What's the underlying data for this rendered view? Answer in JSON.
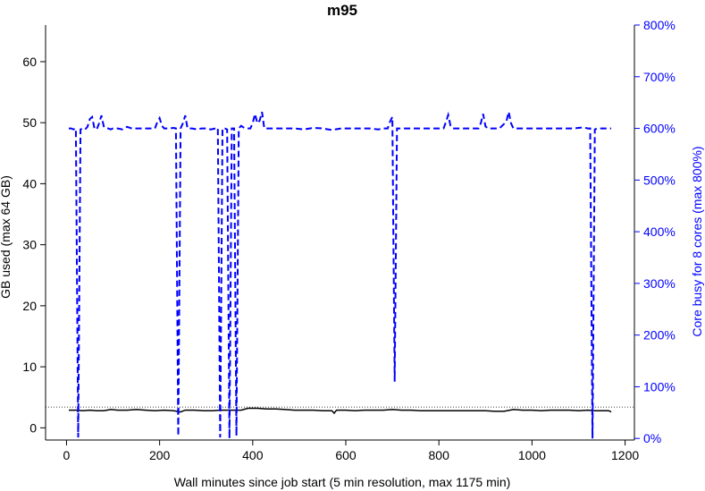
{
  "chart_data": {
    "type": "line",
    "title": "m95",
    "xlabel": "Wall minutes since job start (5 min resolution, max 1175 min)",
    "ylabel_left": "GB used (max 64 GB)",
    "ylabel_right": "Core busy for 8 cores (max 800%)",
    "xlim": [
      -45,
      1220
    ],
    "ylim_left": [
      -2,
      66
    ],
    "ylim_right": [
      -3.1,
      800
    ],
    "x_ticks": [
      0,
      200,
      400,
      600,
      800,
      1000,
      1200
    ],
    "x_tick_labels": [
      "0",
      "200",
      "400",
      "600",
      "800",
      "1000",
      "1200"
    ],
    "y_left_ticks": [
      0,
      10,
      20,
      30,
      40,
      50,
      60
    ],
    "y_left_tick_labels": [
      "0",
      "10",
      "20",
      "30",
      "40",
      "50",
      "60"
    ],
    "y_right_ticks": [
      0,
      100,
      200,
      300,
      400,
      500,
      600,
      700,
      800
    ],
    "y_right_tick_labels": [
      "0%",
      "100%",
      "200%",
      "300%",
      "400%",
      "500%",
      "600%",
      "700%",
      "800%"
    ],
    "reference_line_gb": 3.4,
    "grid": false,
    "colors": {
      "memory": "#000000",
      "cpu": "#0000ff",
      "right_axis": "#0000ff"
    },
    "series": [
      {
        "axis": "left",
        "style": "solid",
        "x": [
          5,
          20,
          35,
          50,
          65,
          80,
          95,
          110,
          130,
          150,
          170,
          190,
          210,
          230,
          245,
          255,
          275,
          295,
          315,
          330,
          345,
          360,
          375,
          390,
          410,
          430,
          450,
          470,
          490,
          510,
          530,
          550,
          570,
          575,
          580,
          600,
          620,
          640,
          660,
          680,
          700,
          720,
          740,
          760,
          780,
          800,
          820,
          840,
          860,
          880,
          900,
          920,
          940,
          960,
          980,
          1000,
          1020,
          1040,
          1060,
          1080,
          1100,
          1120,
          1135,
          1150,
          1165,
          1170
        ],
        "values": [
          2.9,
          2.9,
          2.8,
          2.9,
          2.8,
          2.8,
          3.0,
          2.9,
          2.9,
          3.0,
          2.9,
          2.8,
          2.9,
          2.8,
          2.6,
          2.9,
          2.9,
          2.8,
          2.8,
          2.9,
          2.9,
          2.9,
          2.9,
          3.2,
          3.2,
          3.1,
          3.1,
          3.0,
          2.9,
          2.9,
          2.9,
          2.8,
          2.8,
          2.4,
          2.9,
          2.9,
          2.8,
          2.9,
          2.9,
          2.9,
          3.0,
          2.9,
          2.9,
          2.8,
          2.8,
          2.8,
          2.8,
          2.8,
          2.8,
          2.8,
          2.8,
          2.7,
          2.7,
          3.0,
          2.9,
          2.9,
          2.8,
          2.9,
          2.9,
          2.9,
          2.8,
          2.9,
          2.8,
          2.8,
          2.8,
          2.6
        ]
      },
      {
        "axis": "right",
        "style": "dashed",
        "x": [
          5,
          10,
          15,
          20,
          25,
          30,
          35,
          40,
          45,
          50,
          55,
          60,
          65,
          70,
          75,
          80,
          85,
          90,
          95,
          100,
          110,
          120,
          130,
          140,
          150,
          160,
          170,
          180,
          190,
          195,
          200,
          205,
          210,
          220,
          230,
          235,
          240,
          245,
          250,
          255,
          260,
          265,
          270,
          280,
          290,
          300,
          310,
          320,
          325,
          330,
          335,
          340,
          345,
          350,
          355,
          360,
          365,
          370,
          375,
          380,
          385,
          390,
          395,
          400,
          405,
          410,
          415,
          420,
          425,
          430,
          450,
          470,
          490,
          510,
          530,
          550,
          570,
          590,
          610,
          630,
          650,
          670,
          680,
          690,
          695,
          700,
          705,
          710,
          720,
          740,
          760,
          780,
          800,
          810,
          815,
          820,
          825,
          830,
          850,
          870,
          885,
          890,
          895,
          900,
          905,
          910,
          930,
          945,
          950,
          955,
          960,
          965,
          970,
          990,
          1010,
          1030,
          1050,
          1070,
          1090,
          1110,
          1120,
          1125,
          1130,
          1135,
          1140,
          1145,
          1150,
          1160,
          1170
        ],
        "values": [
          600,
          600,
          598,
          600,
          2,
          598,
          600,
          598,
          603,
          618,
          622,
          600,
          598,
          610,
          625,
          604,
          600,
          600,
          598,
          600,
          600,
          598,
          603,
          600,
          600,
          600,
          600,
          600,
          600,
          612,
          620,
          605,
          600,
          600,
          601,
          600,
          5,
          600,
          610,
          625,
          600,
          600,
          600,
          598,
          600,
          600,
          598,
          600,
          601,
          2,
          600,
          600,
          598,
          0,
          600,
          600,
          5,
          600,
          605,
          602,
          600,
          600,
          600,
          610,
          628,
          610,
          615,
          632,
          600,
          600,
          600,
          600,
          600,
          598,
          601,
          600,
          597,
          600,
          600,
          600,
          600,
          598,
          600,
          600,
          613,
          622,
          110,
          600,
          600,
          600,
          600,
          600,
          600,
          600,
          612,
          626,
          605,
          600,
          600,
          600,
          600,
          610,
          628,
          604,
          600,
          600,
          600,
          613,
          632,
          610,
          600,
          600,
          600,
          600,
          600,
          600,
          600,
          600,
          600,
          602,
          600,
          600,
          0,
          598,
          600,
          600,
          600,
          600,
          600
        ]
      }
    ]
  }
}
